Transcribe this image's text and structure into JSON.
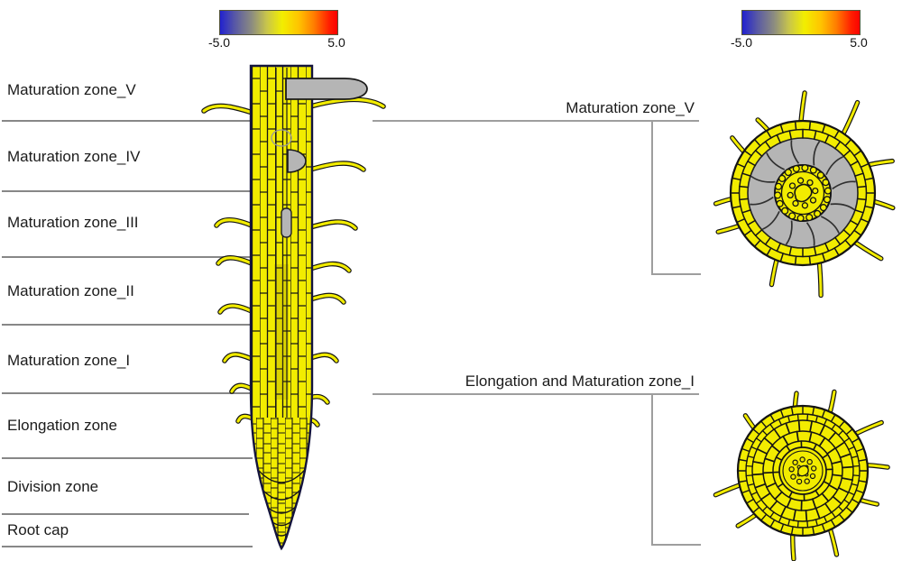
{
  "colors": {
    "cell_yellow": "#f2ec00",
    "tissue_gray": "#b5b5b5",
    "outline": "#141414",
    "root_edge": "#14143c",
    "divider_gray": "#878787",
    "connector_gray": "#9e9e9e",
    "scale_blue": "#2121cf",
    "scale_red": "#fa0300"
  },
  "scale_bars": {
    "left": {
      "min": "-5.0",
      "max": "5.0"
    },
    "right": {
      "min": "-5.0",
      "max": "5.0"
    }
  },
  "left_zones": [
    {
      "label": "Maturation zone_V"
    },
    {
      "label": "Maturation zone_IV"
    },
    {
      "label": "Maturation zone_III"
    },
    {
      "label": "Maturation zone_II"
    },
    {
      "label": "Maturation zone_I"
    },
    {
      "label": "Elongation zone"
    },
    {
      "label": "Division zone"
    },
    {
      "label": "Root cap"
    }
  ],
  "callouts": {
    "top": {
      "label": "Maturation zone_V"
    },
    "bottom": {
      "label": "Elongation and Maturation zone_I"
    }
  }
}
